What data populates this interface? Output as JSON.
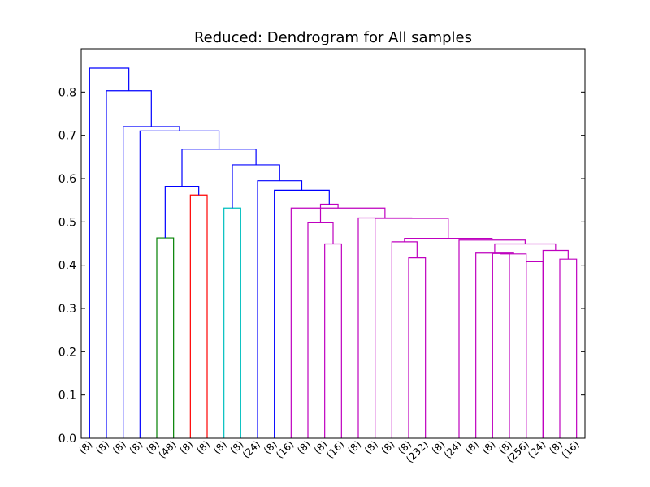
{
  "chart_data": {
    "type": "dendrogram",
    "title": "Reduced:  Dendrogram for All samples",
    "xlabel": "",
    "ylabel": "",
    "ylim": [
      0.0,
      0.9
    ],
    "y_ticks": [
      "0.0",
      "0.1",
      "0.2",
      "0.3",
      "0.4",
      "0.5",
      "0.6",
      "0.7",
      "0.8"
    ],
    "y_tick_values": [
      0.0,
      0.1,
      0.2,
      0.3,
      0.4,
      0.5,
      0.6,
      0.7,
      0.8
    ],
    "grid": false,
    "leaf_labels": [
      "(8)",
      "(8)",
      "(8)",
      "(8)",
      "(8)",
      "(48)",
      "(8)",
      "(8)",
      "(8)",
      "(8)",
      "(24)",
      "(8)",
      "(16)",
      "(8)",
      "(8)",
      "(16)",
      "(8)",
      "(8)",
      "(8)",
      "(8)",
      "(232)",
      "(8)",
      "(24)",
      "(8)",
      "(8)",
      "(8)",
      "(256)",
      "(24)",
      "(8)",
      "(16)"
    ],
    "colors": {
      "blue": "#0000ff",
      "green": "#008000",
      "red": "#ff0000",
      "cyan": "#00bfbf",
      "magenta": "#bf00bf"
    },
    "merges": [
      {
        "left": "L4",
        "right": "L5",
        "height": 0.463,
        "color": "green"
      },
      {
        "left": "L6",
        "right": "L7",
        "height": 0.562,
        "color": "red"
      },
      {
        "left": "L8",
        "right": "L9",
        "height": 0.532,
        "color": "cyan"
      },
      {
        "left": "L15",
        "right": "L16",
        "height": 0.449,
        "color": "magenta"
      },
      {
        "left": "L13",
        "right": "M4",
        "height": 0.498,
        "color": "magenta"
      },
      {
        "left": "L19",
        "right": "L20",
        "height": 0.417,
        "color": "magenta"
      },
      {
        "left": "L18",
        "right": "M6",
        "height": 0.454,
        "color": "magenta"
      },
      {
        "left": "L24",
        "right": "L25",
        "height": 0.427,
        "color": "magenta"
      },
      {
        "left": "L26",
        "right": "L27",
        "height": 0.408,
        "color": "magenta"
      },
      {
        "left": "M8",
        "right": "M9",
        "height": 0.427,
        "color": "magenta"
      },
      {
        "left": "L23",
        "right": "M10",
        "height": 0.428,
        "color": "magenta"
      },
      {
        "left": "L29",
        "right": "L30",
        "height": 0.414,
        "color": "magenta"
      },
      {
        "left": "L28",
        "right": "M12",
        "height": 0.434,
        "color": "magenta"
      },
      {
        "left": "M11",
        "right": "M13",
        "height": 0.449,
        "color": "magenta"
      },
      {
        "left": "M14",
        "right": "M15",
        "height": 0.458,
        "color": "magenta"
      },
      {
        "left": "L22",
        "right": "M15",
        "height": 0.458,
        "color": "magenta"
      },
      {
        "left": "M7",
        "right": "M16",
        "height": 0.462,
        "color": "magenta"
      },
      {
        "left": "L17",
        "right": "M17",
        "height": 0.508,
        "color": "magenta"
      },
      {
        "left": "L16x",
        "right": "M18",
        "height": 0.509,
        "color": "magenta"
      },
      {
        "left": "L14",
        "right": "M19",
        "height": 0.532,
        "color": "magenta"
      },
      {
        "left": "M5",
        "right": "M20",
        "height": 0.541,
        "color": "magenta"
      },
      {
        "left": "L12",
        "right": "M21",
        "height": 0.573,
        "color": "blue"
      },
      {
        "left": "L11",
        "right": "M22",
        "height": 0.595,
        "color": "blue"
      },
      {
        "left": "M3",
        "right": "M23",
        "height": 0.632,
        "color": "blue"
      },
      {
        "left": "M1",
        "right": "M2",
        "height": 0.582,
        "color": "blue"
      },
      {
        "left": "M25",
        "right": "M24",
        "height": 0.668,
        "color": "blue"
      },
      {
        "left": "L3",
        "right": "M26",
        "height": 0.71,
        "color": "blue"
      },
      {
        "left": "L2",
        "right": "M27",
        "height": 0.72,
        "color": "blue"
      },
      {
        "left": "L1",
        "right": "M28",
        "height": 0.803,
        "color": "blue"
      },
      {
        "left": "L0",
        "right": "M29",
        "height": 0.855,
        "color": "blue"
      }
    ]
  }
}
